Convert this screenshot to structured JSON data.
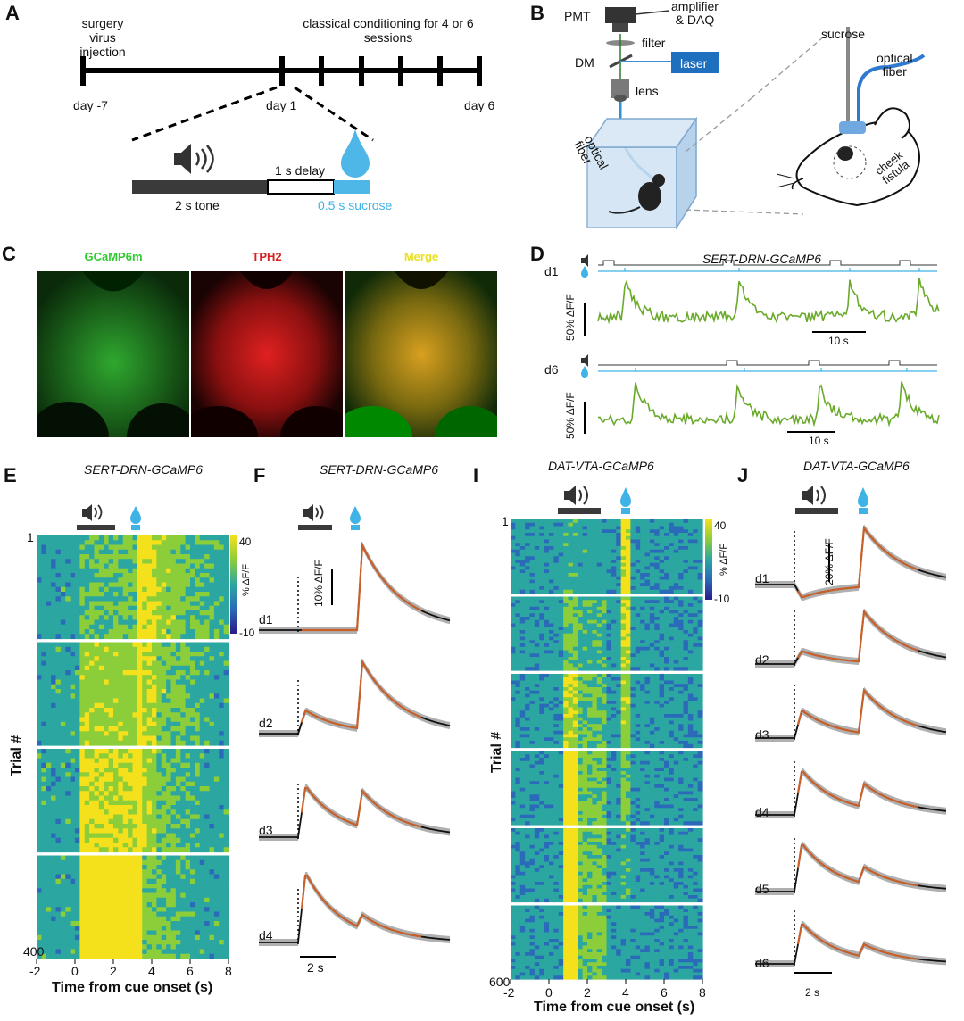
{
  "panels": {
    "A": {
      "letter": "A",
      "text_left": [
        "surgery",
        "virus injection"
      ],
      "text_right": [
        "classical conditioning for 4 or 6",
        "sessions"
      ],
      "day_labels": [
        "day -7",
        "day 1",
        "day 6"
      ],
      "delay": "1 s delay",
      "tone": "2 s tone",
      "sucrose": "0.5 s sucrose"
    },
    "B": {
      "letter": "B",
      "labels": {
        "pmt": "PMT",
        "amp1": "amplifier",
        "amp2": "& DAQ",
        "filter": "filter",
        "dm": "DM",
        "laser": "laser",
        "lens": "lens",
        "fiber_box1": "optical",
        "fiber_box2": "fiber",
        "sucrose": "sucrose",
        "fiber_head1": "optical",
        "fiber_head2": "fiber",
        "cheek1": "cheek",
        "cheek2": "fistula"
      }
    },
    "C": {
      "letter": "C",
      "titles": [
        "GCaMP6m",
        "TPH2",
        "Merge"
      ]
    },
    "D": {
      "letter": "D",
      "title": "SERT-DRN-GCaMP6",
      "rows": [
        "d1",
        "d6"
      ],
      "ylabel": "50% ΔF/F",
      "scale": "10 s"
    },
    "E": {
      "letter": "E",
      "title": "SERT-DRN-GCaMP6",
      "ylabel": "Trial #",
      "xlabel": "Time from cue onset (s)",
      "xticks": [
        "-2",
        "0",
        "2",
        "4",
        "6",
        "8"
      ],
      "row_first": "1",
      "row_last": "400",
      "colorbar": {
        "max": "40",
        "min": "-10",
        "label": "% ΔF/F"
      }
    },
    "F": {
      "letter": "F",
      "title": "SERT-DRN-GCaMP6",
      "rows": [
        "d1",
        "d2",
        "d3",
        "d4"
      ],
      "ylabel": "10% ΔF/F",
      "scale": "2 s"
    },
    "I": {
      "letter": "I",
      "title": "DAT-VTA-GCaMP6",
      "ylabel": "Trial #",
      "xlabel": "Time from cue onset (s)",
      "xticks": [
        "-2",
        "0",
        "2",
        "4",
        "6",
        "8"
      ],
      "row_first": "1",
      "row_last": "600",
      "colorbar": {
        "max": "40",
        "min": "-10",
        "label": "% ΔF/F"
      }
    },
    "J": {
      "letter": "J",
      "title": "DAT-VTA-GCaMP6",
      "rows": [
        "d1",
        "d2",
        "d3",
        "d4",
        "d5",
        "d6"
      ],
      "ylabel": "20% ΔF/F",
      "scale": "2 s"
    }
  },
  "colors": {
    "orange": "#c8602a",
    "blue": "#2f6db5",
    "green": "#6aaa2a",
    "cyan": "#3fb2e6",
    "gray": "#b0b0b0"
  },
  "icons": [
    "speaker-icon",
    "drop-icon",
    "mouse-icon"
  ]
}
